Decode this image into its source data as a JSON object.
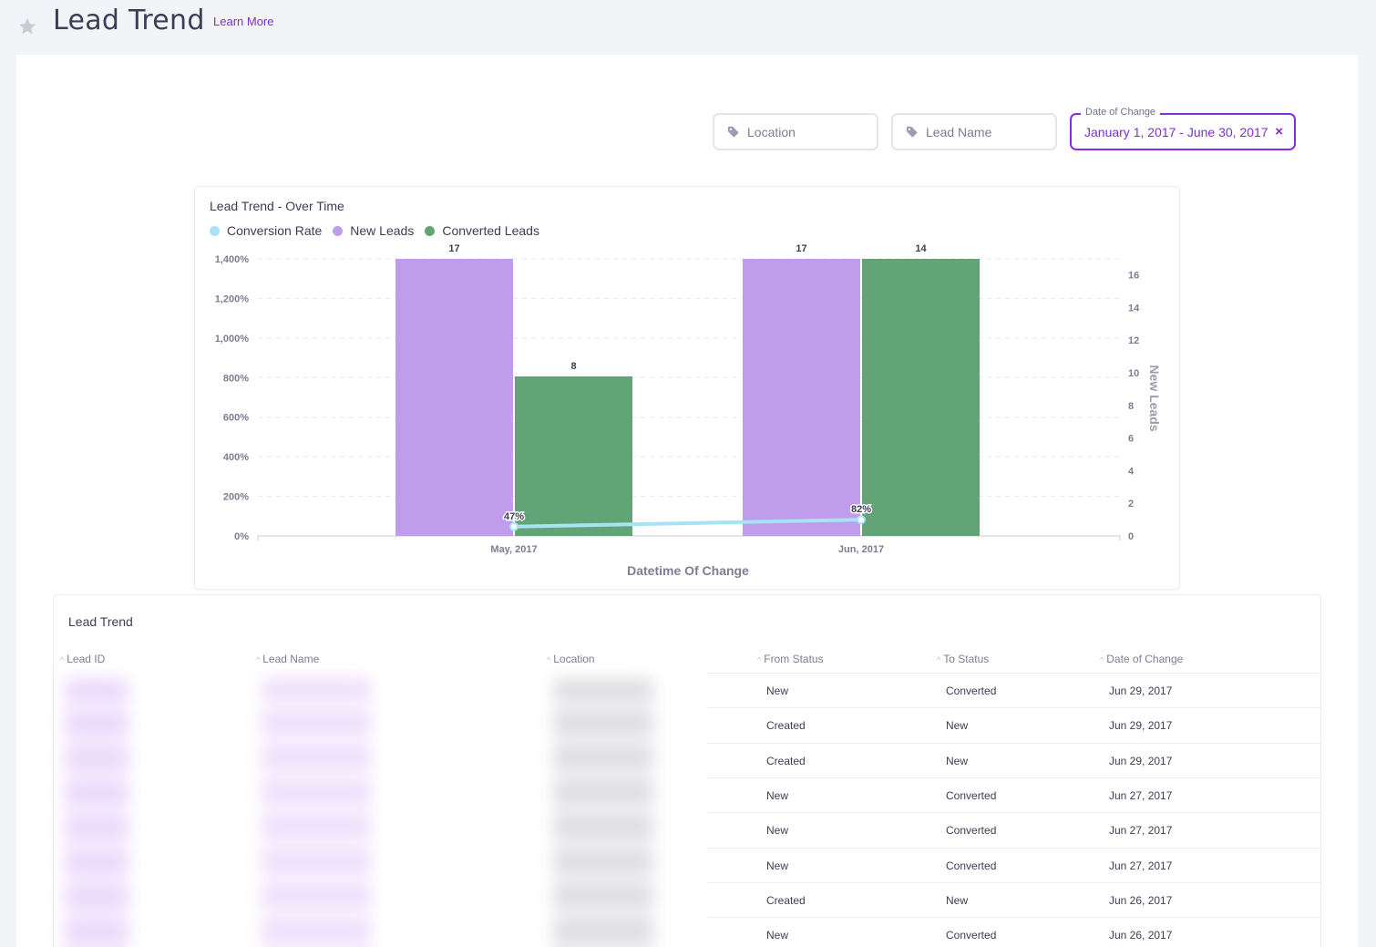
{
  "header": {
    "title": "Lead Trend",
    "learn_more": "Learn More"
  },
  "filters": {
    "location_placeholder": "Location",
    "lead_name_placeholder": "Lead Name",
    "date_label": "Date of Change",
    "date_value": "January 1, 2017 - June 30, 2017",
    "clear_symbol": "×"
  },
  "colors": {
    "accent": "#7b2ed6",
    "conversion_rate": "#a8e2f5",
    "new_leads": "#c09cec",
    "converted_leads": "#63a476"
  },
  "chart": {
    "title": "Lead Trend - Over Time",
    "legend": [
      "Conversion Rate",
      "New Leads",
      "Converted Leads"
    ]
  },
  "chart_data": {
    "type": "bar",
    "title": "Lead Trend - Over Time",
    "categories": [
      "May, 2017",
      "Jun, 2017"
    ],
    "xlabel": "Datetime Of Change",
    "ylabel_left": "",
    "ylabel_right": "New Leads",
    "left_axis_ticks": [
      "0%",
      "200%",
      "400%",
      "600%",
      "800%",
      "1,000%",
      "1,200%",
      "1,400%"
    ],
    "left_ylim": [
      0,
      1400
    ],
    "right_axis_ticks": [
      "0",
      "2",
      "4",
      "6",
      "8",
      "10",
      "12",
      "14",
      "16"
    ],
    "right_ylim": [
      0,
      17
    ],
    "grid": true,
    "legend_position": "top-left",
    "series": [
      {
        "name": "New Leads",
        "type": "bar",
        "axis": "right",
        "values": [
          17,
          17
        ],
        "labels": [
          "17",
          "17"
        ]
      },
      {
        "name": "Converted Leads",
        "type": "bar",
        "axis": "right",
        "values": [
          8,
          14
        ],
        "labels": [
          "8",
          "14"
        ]
      },
      {
        "name": "Conversion Rate",
        "type": "line",
        "axis": "left",
        "values": [
          47,
          82
        ],
        "labels": [
          "47%",
          "82%"
        ]
      }
    ]
  },
  "table": {
    "title": "Lead Trend",
    "columns": [
      "Lead ID",
      "Lead Name",
      "Location",
      "From Status",
      "To Status",
      "Date of Change"
    ],
    "rows": [
      {
        "from": "New",
        "to": "Converted",
        "date": "Jun 29, 2017"
      },
      {
        "from": "Created",
        "to": "New",
        "date": "Jun 29, 2017"
      },
      {
        "from": "Created",
        "to": "New",
        "date": "Jun 29, 2017"
      },
      {
        "from": "New",
        "to": "Converted",
        "date": "Jun 27, 2017"
      },
      {
        "from": "New",
        "to": "Converted",
        "date": "Jun 27, 2017"
      },
      {
        "from": "New",
        "to": "Converted",
        "date": "Jun 27, 2017"
      },
      {
        "from": "Created",
        "to": "New",
        "date": "Jun 26, 2017"
      },
      {
        "from": "New",
        "to": "Converted",
        "date": "Jun 26, 2017"
      }
    ]
  }
}
